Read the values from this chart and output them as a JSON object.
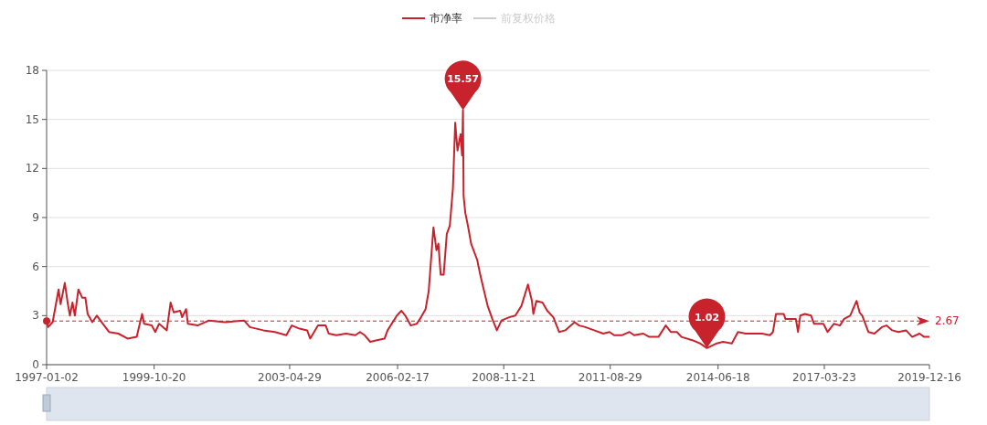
{
  "chart_data": {
    "type": "line",
    "legend": "top",
    "grid": "y",
    "line_style": "solid",
    "xlim": [
      "1997-01-02",
      "2019-12-16"
    ],
    "xticks": [
      {
        "value": "1997-01-02",
        "label": "1997-01-02"
      },
      {
        "value": "1999-10-20",
        "label": "1999-10-20"
      },
      {
        "value": "2003-04-29",
        "label": "2003-04-29"
      },
      {
        "value": "2006-02-17",
        "label": "2006-02-17"
      },
      {
        "value": "2008-11-21",
        "label": "2008-11-21"
      },
      {
        "value": "2011-08-29",
        "label": "2011-08-29"
      },
      {
        "value": "2014-06-18",
        "label": "2014-06-18"
      },
      {
        "value": "2017-03-23",
        "label": "2017-03-23"
      },
      {
        "value": "2019-12-16",
        "label": "2019-12-16"
      }
    ],
    "ylim": [
      0,
      18
    ],
    "yticks": [
      0,
      3,
      6,
      9,
      12,
      15,
      18
    ],
    "series": [
      {
        "name": "市净率",
        "color": "#c8232c",
        "x": [
          "1997-01-02",
          "1997-01-16",
          "1997-02-28",
          "1997-04-26",
          "1997-05-15",
          "1997-06-24",
          "1997-07-23",
          "1997-08-11",
          "1997-09-05",
          "1997-09-27",
          "1997-10-31",
          "1997-12-06",
          "1998-01-05",
          "1998-01-27",
          "1998-03-12",
          "1998-04-24",
          "1998-06-21",
          "1998-08-18",
          "1998-11-14",
          "1999-02-10",
          "1999-05-08",
          "1999-06-28",
          "1999-07-17",
          "1999-09-28",
          "1999-10-31",
          "1999-12-06",
          "2000-02-17",
          "2000-03-25",
          "2000-04-23",
          "2000-06-24",
          "2000-07-12",
          "2000-08-18",
          "2000-09-05",
          "2000-12-06",
          "2001-03-25",
          "2001-08-22",
          "2002-02-20",
          "2002-04-16",
          "2002-08-22",
          "2002-12-09",
          "2003-03-28",
          "2003-05-19",
          "2003-07-31",
          "2003-10-12",
          "2003-11-10",
          "2004-01-23",
          "2004-04-05",
          "2004-05-04",
          "2004-07-16",
          "2004-10-16",
          "2005-01-12",
          "2005-02-25",
          "2005-04-10",
          "2005-06-03",
          "2005-08-04",
          "2005-10-16",
          "2005-11-14",
          "2006-02-10",
          "2006-03-26",
          "2006-05-01",
          "2006-06-21",
          "2006-08-18",
          "2006-09-27",
          "2006-11-10",
          "2006-12-09",
          "2007-01-23",
          "2007-02-21",
          "2007-03-11",
          "2007-04-02",
          "2007-05-01",
          "2007-05-30",
          "2007-06-28",
          "2007-07-27",
          "2007-08-18",
          "2007-09-09",
          "2007-10-08",
          "2007-10-22",
          "2007-10-31",
          "2007-11-06",
          "2007-11-21",
          "2007-12-17",
          "2008-01-16",
          "2008-03-14",
          "2008-04-12",
          "2008-05-11",
          "2008-06-21",
          "2008-08-04",
          "2008-09-17",
          "2008-10-30",
          "2009-01-12",
          "2009-03-11",
          "2009-05-08",
          "2009-07-09",
          "2009-08-15",
          "2009-08-29",
          "2009-09-27",
          "2009-11-24",
          "2010-01-08",
          "2010-03-07",
          "2010-05-01",
          "2010-06-28",
          "2010-09-24",
          "2010-11-07",
          "2011-01-05",
          "2011-03-29",
          "2011-06-24",
          "2011-08-22",
          "2011-10-05",
          "2011-12-17",
          "2012-02-28",
          "2012-04-12",
          "2012-07-08",
          "2012-09-02",
          "2012-11-29",
          "2013-02-06",
          "2013-03-26",
          "2013-05-23",
          "2013-07-06",
          "2013-10-16",
          "2013-12-28",
          "2014-03-04",
          "2014-06-06",
          "2014-08-04",
          "2014-10-27",
          "2014-12-24",
          "2015-03-08",
          "2015-05-19",
          "2015-08-11",
          "2015-10-23",
          "2015-11-21",
          "2015-12-20",
          "2016-03-03",
          "2016-03-18",
          "2016-06-25",
          "2016-07-16",
          "2016-08-07",
          "2016-09-20",
          "2016-11-17",
          "2016-12-16",
          "2017-03-14",
          "2017-04-23",
          "2017-06-21",
          "2017-08-18",
          "2017-09-27",
          "2017-11-24",
          "2018-01-23",
          "2018-02-21",
          "2018-03-18",
          "2018-05-15",
          "2018-07-12",
          "2018-09-20",
          "2018-11-03",
          "2018-12-28",
          "2019-02-24",
          "2019-05-08",
          "2019-07-05",
          "2019-09-13",
          "2019-10-27",
          "2019-12-16"
        ],
        "values": [
          2.7,
          2.3,
          2.6,
          4.6,
          3.7,
          5.0,
          3.7,
          3.0,
          3.8,
          3.0,
          4.6,
          4.1,
          4.1,
          3.1,
          2.6,
          3.0,
          2.5,
          2.0,
          1.9,
          1.6,
          1.7,
          3.1,
          2.5,
          2.4,
          2.0,
          2.5,
          2.1,
          3.8,
          3.2,
          3.3,
          2.9,
          3.4,
          2.5,
          2.4,
          2.7,
          2.6,
          2.7,
          2.3,
          2.1,
          2.0,
          1.8,
          2.4,
          2.2,
          2.1,
          1.6,
          2.4,
          2.4,
          1.9,
          1.8,
          1.9,
          1.8,
          2.0,
          1.8,
          1.4,
          1.5,
          1.6,
          2.1,
          3.0,
          3.3,
          3.0,
          2.4,
          2.5,
          2.9,
          3.4,
          4.5,
          8.4,
          7.0,
          7.4,
          5.5,
          5.5,
          8.0,
          8.5,
          10.8,
          14.8,
          13.1,
          14.1,
          12.8,
          15.57,
          10.3,
          9.3,
          8.5,
          7.4,
          6.4,
          5.5,
          4.7,
          3.6,
          2.8,
          2.1,
          2.7,
          2.9,
          3.0,
          3.6,
          4.9,
          3.9,
          3.1,
          3.9,
          3.8,
          3.3,
          2.9,
          2.0,
          2.1,
          2.6,
          2.4,
          2.3,
          2.1,
          1.9,
          2.0,
          1.8,
          1.8,
          2.0,
          1.8,
          1.9,
          1.7,
          1.7,
          2.4,
          2.0,
          2.0,
          1.7,
          1.5,
          1.3,
          1.02,
          1.3,
          1.4,
          1.3,
          2.0,
          1.9,
          1.9,
          1.9,
          1.8,
          2.0,
          3.1,
          3.1,
          2.8,
          2.8,
          2.0,
          3.0,
          3.1,
          3.0,
          2.5,
          2.5,
          2.0,
          2.5,
          2.4,
          2.8,
          3.0,
          3.9,
          3.2,
          3.0,
          2.0,
          1.9,
          2.3,
          2.4,
          2.1,
          2.0,
          2.1,
          1.7,
          1.9,
          1.7,
          1.7
        ]
      },
      {
        "name": "前复权价格",
        "color": "#cccccc"
      }
    ],
    "ref_lines": [
      {
        "axis": "y",
        "value": 2.67,
        "label": "2.67",
        "line_style": "dashed",
        "color": "#c8232c"
      }
    ],
    "annotations": [
      {
        "text": "15.57",
        "x": "2007-10-31",
        "y": 15.57
      },
      {
        "text": "1.02",
        "x": "2014-03-04",
        "y": 1.02
      }
    ]
  }
}
